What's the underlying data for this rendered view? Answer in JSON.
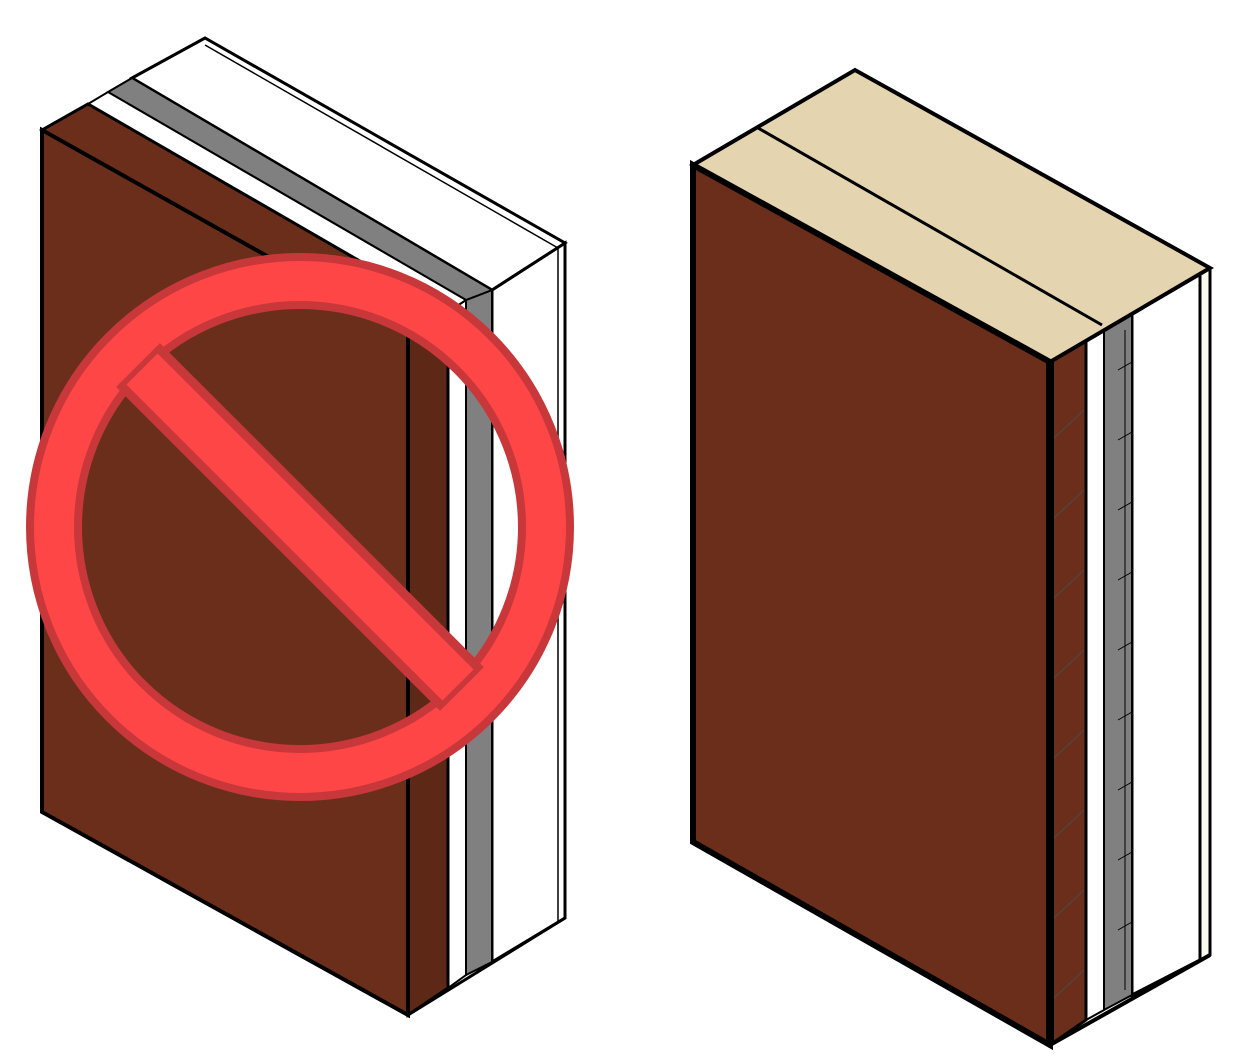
{
  "figure": {
    "description_free": true,
    "colors": {
      "background": "#ffffff",
      "brick": "#6b2e1a",
      "brick_dark": "#5e2816",
      "insulation": "#ffffff",
      "air_gap_gray": "#808080",
      "sheathing_white": "#ffffff",
      "top_cap": "#e4d5b0",
      "interior_finish": "#fbfaec",
      "outline": "#000000",
      "prohibition_red": "#ff4646",
      "prohibition_red_dark": "#c8373a"
    }
  },
  "left_assembly": {
    "status": "prohibited",
    "icon": "prohibition-icon"
  },
  "right_assembly": {
    "status": "approved"
  }
}
